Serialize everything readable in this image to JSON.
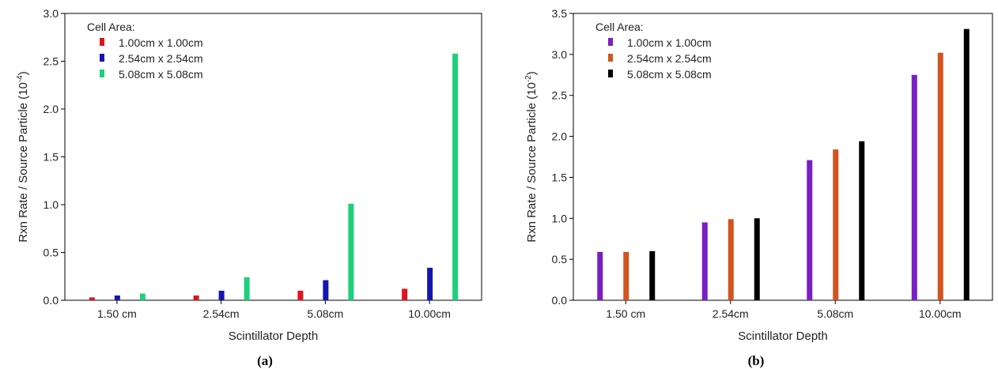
{
  "chart_data": [
    {
      "type": "bar",
      "panel_label": "(a)",
      "xlabel": "Scintillator Depth",
      "ylabel": "Rxn Rate / Source Particle (10",
      "ylabel_exp": "-4",
      "ylabel_close": ")",
      "ylim": [
        0,
        3.0
      ],
      "yticks": [
        "0.0",
        "0.5",
        "1.0",
        "1.5",
        "2.0",
        "2.5",
        "3.0"
      ],
      "categories": [
        "1.50 cm",
        "2.54cm",
        "5.08cm",
        "10.00cm"
      ],
      "legend_title": "Cell Area:",
      "legend_position": "top-left",
      "grid": false,
      "series": [
        {
          "name": "1.00cm x 1.00cm",
          "color": "#e0141e",
          "values": [
            0.03,
            0.05,
            0.1,
            0.12
          ]
        },
        {
          "name": "2.54cm x 2.54cm",
          "color": "#1515b0",
          "values": [
            0.05,
            0.1,
            0.21,
            0.34
          ]
        },
        {
          "name": "5.08cm x 5.08cm",
          "color": "#1fcf7a",
          "values": [
            0.07,
            0.24,
            1.01,
            2.58
          ]
        }
      ]
    },
    {
      "type": "bar",
      "panel_label": "(b)",
      "xlabel": "Scintillator Depth",
      "ylabel": "Rxn Rate / Source Particle (10",
      "ylabel_exp": "-2",
      "ylabel_close": ")",
      "ylim": [
        0,
        3.5
      ],
      "yticks": [
        "0.0",
        "0.5",
        "1.0",
        "1.5",
        "2.0",
        "2.5",
        "3.0",
        "3.5"
      ],
      "categories": [
        "1.50 cm",
        "2.54cm",
        "5.08cm",
        "10.00cm"
      ],
      "legend_title": "Cell Area:",
      "legend_position": "top-left",
      "grid": false,
      "series": [
        {
          "name": "1.00cm x 1.00cm",
          "color": "#7a1fc2",
          "values": [
            0.59,
            0.95,
            1.71,
            2.75
          ]
        },
        {
          "name": "2.54cm x 2.54cm",
          "color": "#d2541e",
          "values": [
            0.59,
            0.99,
            1.84,
            3.02
          ]
        },
        {
          "name": "5.08cm x 5.08cm",
          "color": "#000000",
          "values": [
            0.6,
            1.0,
            1.94,
            3.31
          ]
        }
      ]
    }
  ]
}
